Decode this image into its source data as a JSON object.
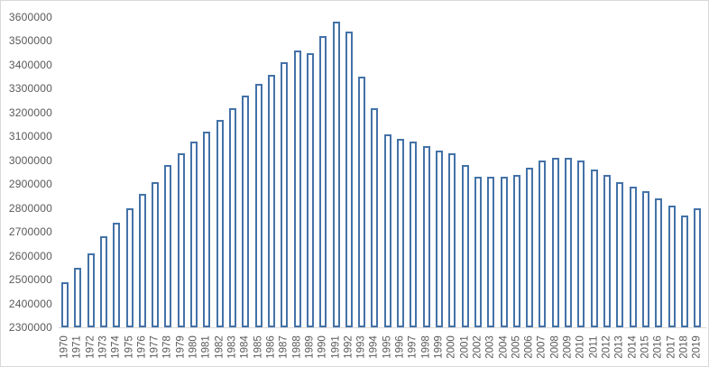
{
  "chart_data": {
    "type": "bar",
    "title": "",
    "xlabel": "",
    "ylabel": "",
    "legend_position": "none",
    "grid": false,
    "bar_style": "hollow-outline",
    "bar_fill_color": "#ffffff",
    "bar_border_color": "#4472a8",
    "axis_text_color": "#595959",
    "frame_color": "#d9d9d9",
    "ylim": [
      2300000,
      3600000
    ],
    "ytick_step": 100000,
    "y_tick_labels": [
      "3600000",
      "3500000",
      "3400000",
      "3300000",
      "3200000",
      "3100000",
      "3000000",
      "2900000",
      "2800000",
      "2700000",
      "2600000",
      "2500000",
      "2400000",
      "2300000"
    ],
    "categories": [
      "1970",
      "1971",
      "1972",
      "1973",
      "1974",
      "1975",
      "1976",
      "1977",
      "1978",
      "1979",
      "1980",
      "1981",
      "1982",
      "1983",
      "1984",
      "1985",
      "1986",
      "1987",
      "1988",
      "1989",
      "1990",
      "1991",
      "1992",
      "1993",
      "1994",
      "1995",
      "1996",
      "1997",
      "1998",
      "1999",
      "2000",
      "2001",
      "2002",
      "2003",
      "2004",
      "2005",
      "2006",
      "2007",
      "2008",
      "2009",
      "2010",
      "2011",
      "2012",
      "2013",
      "2014",
      "2015",
      "2016",
      "2017",
      "2018",
      "2019"
    ],
    "values": [
      2490000,
      2550000,
      2610000,
      2680000,
      2740000,
      2800000,
      2860000,
      2910000,
      2980000,
      3030000,
      3080000,
      3120000,
      3170000,
      3220000,
      3270000,
      3320000,
      3360000,
      3410000,
      3460000,
      3450000,
      3520000,
      3580000,
      3540000,
      3350000,
      3220000,
      3110000,
      3090000,
      3080000,
      3060000,
      3040000,
      3030000,
      2980000,
      2930000,
      2930000,
      2930000,
      2940000,
      2970000,
      3000000,
      3010000,
      3010000,
      3000000,
      2960000,
      2940000,
      2910000,
      2890000,
      2870000,
      2840000,
      2810000,
      2770000,
      2800000
    ]
  }
}
